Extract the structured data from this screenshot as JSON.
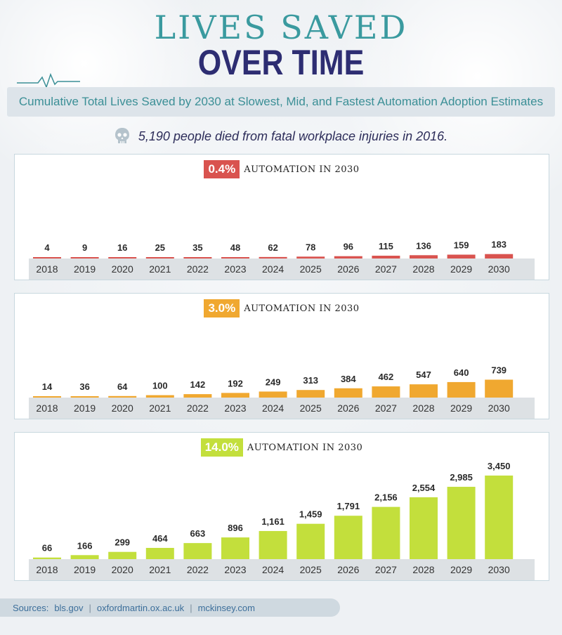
{
  "title_line1": "LIVES SAVED",
  "title_line2": "OVER TIME",
  "subtitle": "Cumulative Total Lives Saved by 2030 at Slowest, Mid, and Fastest Automation Adoption Estimates",
  "fact": "5,190 people died from fatal workplace injuries in 2016.",
  "automation_label": "AUTOMATION IN 2030",
  "sources": {
    "label": "Sources:",
    "items": [
      "bls.gov",
      "oxfordmartin.ox.ac.uk",
      "mckinsey.com"
    ]
  },
  "colors": {
    "slow": "#d9534f",
    "mid": "#f0a830",
    "fast": "#c3df3c",
    "axis_band": "#dde1e4"
  },
  "chart_data": [
    {
      "type": "bar",
      "title": "0.4%",
      "color_key": "slow",
      "categories": [
        "2018",
        "2019",
        "2020",
        "2021",
        "2022",
        "2023",
        "2024",
        "2025",
        "2026",
        "2027",
        "2028",
        "2029",
        "2030"
      ],
      "values": [
        4,
        9,
        16,
        25,
        35,
        48,
        62,
        78,
        96,
        115,
        136,
        159,
        183
      ],
      "value_labels": [
        "4",
        "9",
        "16",
        "25",
        "35",
        "48",
        "62",
        "78",
        "96",
        "115",
        "136",
        "159",
        "183"
      ],
      "ylim": [
        0,
        3450
      ]
    },
    {
      "type": "bar",
      "title": "3.0%",
      "color_key": "mid",
      "categories": [
        "2018",
        "2019",
        "2020",
        "2021",
        "2022",
        "2023",
        "2024",
        "2025",
        "2026",
        "2027",
        "2028",
        "2029",
        "2030"
      ],
      "values": [
        14,
        36,
        64,
        100,
        142,
        192,
        249,
        313,
        384,
        462,
        547,
        640,
        739
      ],
      "value_labels": [
        "14",
        "36",
        "64",
        "100",
        "142",
        "192",
        "249",
        "313",
        "384",
        "462",
        "547",
        "640",
        "739"
      ],
      "ylim": [
        0,
        3450
      ]
    },
    {
      "type": "bar",
      "title": "14.0%",
      "color_key": "fast",
      "categories": [
        "2018",
        "2019",
        "2020",
        "2021",
        "2022",
        "2023",
        "2024",
        "2025",
        "2026",
        "2027",
        "2028",
        "2029",
        "2030"
      ],
      "values": [
        66,
        166,
        299,
        464,
        663,
        896,
        1161,
        1459,
        1791,
        2156,
        2554,
        2985,
        3450
      ],
      "value_labels": [
        "66",
        "166",
        "299",
        "464",
        "663",
        "896",
        "1,161",
        "1,459",
        "1,791",
        "2,156",
        "2,554",
        "2,985",
        "3,450"
      ],
      "ylim": [
        0,
        3450
      ]
    }
  ]
}
